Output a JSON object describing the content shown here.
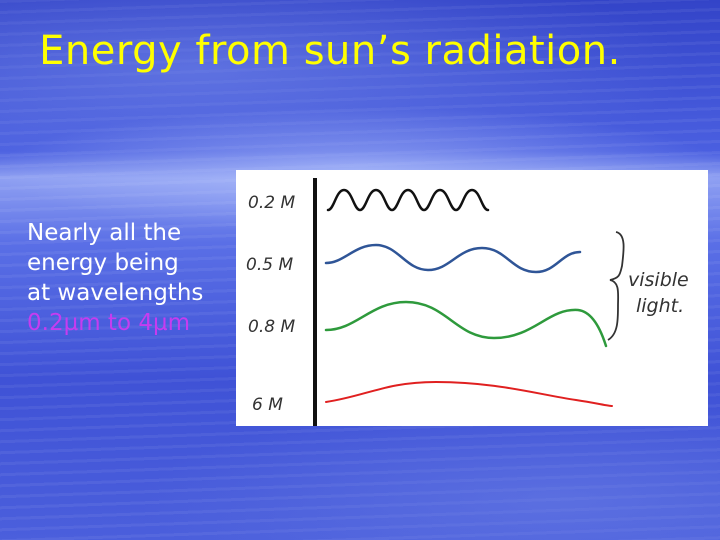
{
  "slide": {
    "title": "Energy from sun’s radiation.",
    "body_lines": [
      "Nearly all the",
      "energy being",
      "at wavelengths"
    ],
    "range_text": "0.2µm to 4µm"
  },
  "diagram": {
    "background": "#ffffff",
    "axis_color": "#111111",
    "waves": [
      {
        "label": "0.2 M",
        "color": "#111111"
      },
      {
        "label": "0.5 M",
        "color": "#2f5597"
      },
      {
        "label": "0.8 M",
        "color": "#2e9a3c"
      },
      {
        "label": "6 M",
        "color": "#e02020"
      }
    ],
    "visible_label_line1": "visible",
    "visible_label_line2": "light."
  }
}
